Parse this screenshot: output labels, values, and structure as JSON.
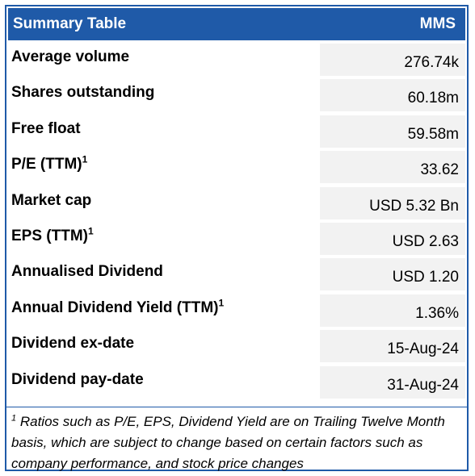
{
  "header": {
    "title": "Summary Table",
    "ticker": "MMS"
  },
  "rows": [
    {
      "label": "Average volume",
      "sup": "",
      "value": "276.74k"
    },
    {
      "label": "Shares outstanding",
      "sup": "",
      "value": "60.18m"
    },
    {
      "label": "Free float",
      "sup": "",
      "value": "59.58m"
    },
    {
      "label": "P/E (TTM)",
      "sup": "1",
      "value": "33.62"
    },
    {
      "label": "Market cap",
      "sup": "",
      "value": "USD 5.32 Bn"
    },
    {
      "label": "EPS (TTM)",
      "sup": "1",
      "value": "USD 2.63"
    },
    {
      "label": "Annualised Dividend",
      "sup": "",
      "value": "USD 1.20"
    },
    {
      "label": "Annual Dividend Yield (TTM)",
      "sup": "1",
      "value": "1.36%"
    },
    {
      "label": "Dividend ex-date",
      "sup": "",
      "value": "15-Aug-24"
    },
    {
      "label": "Dividend pay-date",
      "sup": "",
      "value": "31-Aug-24"
    }
  ],
  "footnote": {
    "marker": "1",
    "text": " Ratios such as P/E, EPS, Dividend Yield are on Trailing Twelve Month basis, which are subject to change based on certain factors such as company performance, and stock price changes"
  },
  "colors": {
    "header_bg": "#1f5aa8",
    "value_bg": "#f2f2f2"
  }
}
